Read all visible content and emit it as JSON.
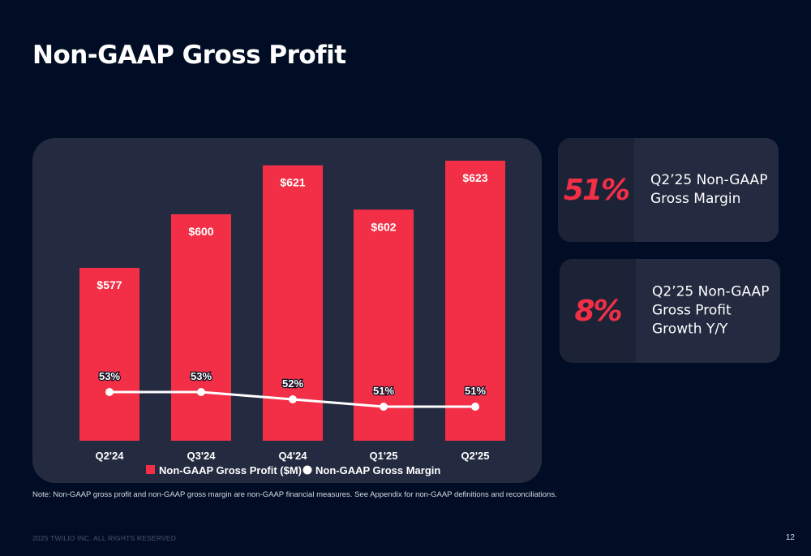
{
  "page": {
    "title": "Non-GAAP Gross Profit",
    "note": "Note: Non-GAAP gross profit and non-GAAP gross margin are non-GAAP financial measures. See Appendix for non-GAAP definitions and reconciliations.",
    "footer": "2025 TWILIO INC. ALL RIGHTS RESERVED",
    "page_number": "12"
  },
  "stats": [
    {
      "value": "51%",
      "label": "Q2’25 Non-GAAP Gross Margin"
    },
    {
      "value": "8%",
      "label": "Q2’25 Non-GAAP Gross Profit Growth Y/Y"
    }
  ],
  "colors": {
    "accent": "#f22f46",
    "background": "#010d24",
    "card": "#242b40",
    "line": "#ffffff"
  },
  "chart_data": {
    "type": "bar",
    "categories": [
      "Q2'24",
      "Q3'24",
      "Q4'24",
      "Q1'25",
      "Q2'25"
    ],
    "series": [
      {
        "name": "Non-GAAP Gross Profit ($M)",
        "type": "bar",
        "values": [
          577,
          600,
          621,
          602,
          623
        ],
        "labels": [
          "$577",
          "$600",
          "$621",
          "$602",
          "$623"
        ]
      },
      {
        "name": "Non-GAAP Gross Margin",
        "type": "line",
        "values": [
          53,
          53,
          52,
          51,
          51
        ],
        "labels": [
          "53%",
          "53%",
          "52%",
          "51%",
          "51%"
        ]
      }
    ],
    "legend": "bottom-center",
    "title": "",
    "xlabel": "",
    "ylabel": ""
  }
}
